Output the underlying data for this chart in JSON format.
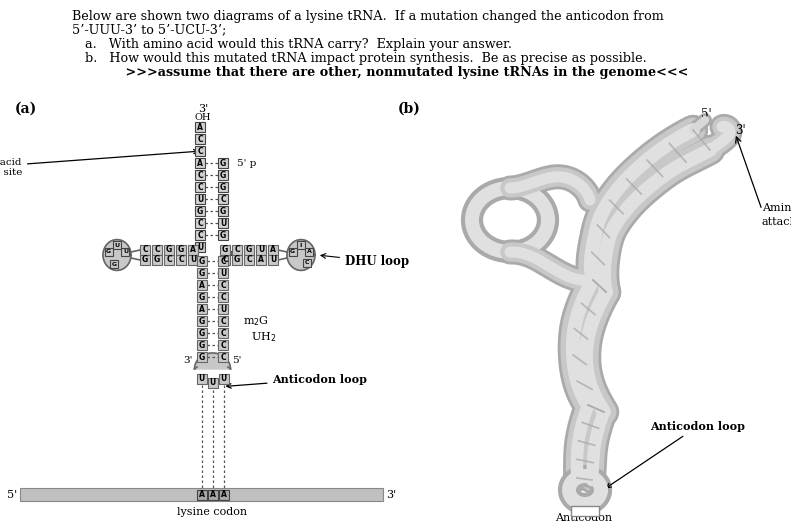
{
  "title_line1": "Below are shown two diagrams of a lysine tRNA.  If a mutation changed the anticodon from",
  "title_line2": "5’-UUU-3’ to 5’-UCU-3’;",
  "qa": "a.   With amino acid would this tRNA carry?  Explain your answer.",
  "qb": "b.   How would this mutated tRNA impact protein synthesis.  Be as precise as possible.",
  "qbold": "         >>>assume that there are other, nonmutated lysine tRNAs in the genome<<<",
  "label_a": "(a)",
  "label_b": "(b)",
  "fig_bg": "#ffffff",
  "box_fill": "#d0d0d0",
  "box_edge": "#444444",
  "loop_fill": "#c8c8c8",
  "loop_edge": "#666666",
  "mrna_fill": "#c0c0c0",
  "helix_outer": "#d0d0d0",
  "helix_inner": "#b8b8b8",
  "helix_edge": "#999999",
  "helix_stripe": "#aaaaaa"
}
